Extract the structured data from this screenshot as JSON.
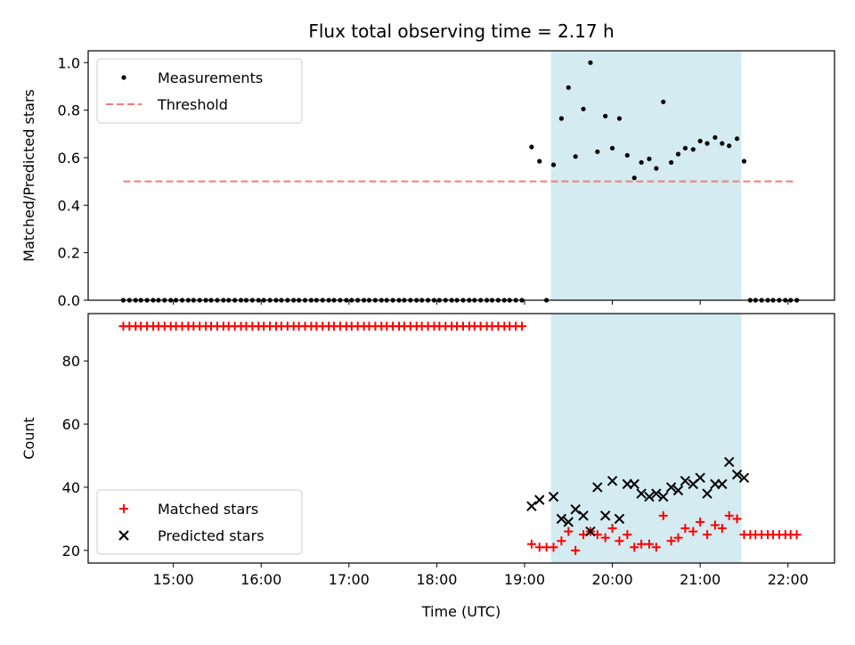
{
  "chart_data": {
    "title": "Flux total observing time = 2.17 h",
    "xlabel": "Time (UTC)",
    "x_unit": "hours UTC (decimal)",
    "x_ticks": [
      {
        "value": 15,
        "label": "15:00"
      },
      {
        "value": 16,
        "label": "16:00"
      },
      {
        "value": 17,
        "label": "17:00"
      },
      {
        "value": 18,
        "label": "18:00"
      },
      {
        "value": 19,
        "label": "19:00"
      },
      {
        "value": 20,
        "label": "20:00"
      },
      {
        "value": 21,
        "label": "21:00"
      },
      {
        "value": 22,
        "label": "22:00"
      }
    ],
    "xlim": [
      14.03,
      22.53
    ],
    "highlight_span": [
      19.3,
      21.47
    ],
    "highlight_color": "#d3ebf1",
    "panels": [
      {
        "type": "scatter",
        "ylabel": "Matched/Predicted stars",
        "ylim": [
          0,
          1.05
        ],
        "y_ticks": [
          {
            "value": 0.0,
            "label": "0.0"
          },
          {
            "value": 0.2,
            "label": "0.2"
          },
          {
            "value": 0.4,
            "label": "0.4"
          },
          {
            "value": 0.6,
            "label": "0.6"
          },
          {
            "value": 0.8,
            "label": "0.8"
          },
          {
            "value": 1.0,
            "label": "1.0"
          }
        ],
        "legend_position": "top-left",
        "threshold": {
          "name": "Threshold",
          "value": 0.5,
          "x_range": [
            14.43,
            22.1
          ],
          "color": "#f77a7a"
        },
        "series": [
          {
            "name": "Measurements",
            "marker": "dot",
            "color": "#000000",
            "x": [
              14.43,
              14.5,
              14.57,
              14.63,
              14.7,
              14.77,
              14.83,
              14.9,
              14.97,
              15.03,
              15.1,
              15.17,
              15.23,
              15.3,
              15.37,
              15.43,
              15.5,
              15.57,
              15.63,
              15.7,
              15.77,
              15.83,
              15.9,
              15.97,
              16.03,
              16.1,
              16.17,
              16.23,
              16.3,
              16.37,
              16.43,
              16.5,
              16.57,
              16.63,
              16.7,
              16.77,
              16.83,
              16.9,
              16.97,
              17.03,
              17.1,
              17.17,
              17.23,
              17.3,
              17.37,
              17.43,
              17.5,
              17.57,
              17.63,
              17.7,
              17.77,
              17.83,
              17.9,
              17.97,
              18.03,
              18.1,
              18.17,
              18.23,
              18.3,
              18.37,
              18.43,
              18.5,
              18.57,
              18.63,
              18.7,
              18.77,
              18.83,
              18.9,
              18.97,
              19.08,
              19.17,
              19.25,
              19.33,
              19.42,
              19.5,
              19.58,
              19.67,
              19.75,
              19.83,
              19.92,
              20.0,
              20.08,
              20.17,
              20.25,
              20.33,
              20.42,
              20.5,
              20.58,
              20.67,
              20.75,
              20.83,
              20.92,
              21.0,
              21.08,
              21.17,
              21.25,
              21.33,
              21.42,
              21.5,
              21.57,
              21.63,
              21.7,
              21.77,
              21.83,
              21.9,
              21.97,
              22.03,
              22.1
            ],
            "y": [
              0,
              0,
              0,
              0,
              0,
              0,
              0,
              0,
              0,
              0,
              0,
              0,
              0,
              0,
              0,
              0,
              0,
              0,
              0,
              0,
              0,
              0,
              0,
              0,
              0,
              0,
              0,
              0,
              0,
              0,
              0,
              0,
              0,
              0,
              0,
              0,
              0,
              0,
              0,
              0,
              0,
              0,
              0,
              0,
              0,
              0,
              0,
              0,
              0,
              0,
              0,
              0,
              0,
              0,
              0,
              0,
              0,
              0,
              0,
              0,
              0,
              0,
              0,
              0,
              0,
              0,
              0,
              0,
              0,
              0.645,
              0.585,
              0,
              0.57,
              0.765,
              0.895,
              0.605,
              0.805,
              1.0,
              0.625,
              0.775,
              0.64,
              0.765,
              0.61,
              0.515,
              0.58,
              0.595,
              0.555,
              0.835,
              0.58,
              0.615,
              0.64,
              0.635,
              0.67,
              0.66,
              0.685,
              0.66,
              0.65,
              0.68,
              0.585,
              0,
              0,
              0,
              0,
              0,
              0,
              0,
              0,
              0
            ]
          }
        ]
      },
      {
        "type": "scatter",
        "ylabel": "Count",
        "ylim": [
          16,
          95
        ],
        "y_ticks": [
          {
            "value": 20,
            "label": "20"
          },
          {
            "value": 40,
            "label": "40"
          },
          {
            "value": 60,
            "label": "60"
          },
          {
            "value": 80,
            "label": "80"
          }
        ],
        "legend_position": "bottom-left",
        "series": [
          {
            "name": "Matched stars",
            "marker": "plus",
            "color": "#ff0000",
            "x": [
              14.43,
              14.5,
              14.57,
              14.63,
              14.7,
              14.77,
              14.83,
              14.9,
              14.97,
              15.03,
              15.1,
              15.17,
              15.23,
              15.3,
              15.37,
              15.43,
              15.5,
              15.57,
              15.63,
              15.7,
              15.77,
              15.83,
              15.9,
              15.97,
              16.03,
              16.1,
              16.17,
              16.23,
              16.3,
              16.37,
              16.43,
              16.5,
              16.57,
              16.63,
              16.7,
              16.77,
              16.83,
              16.9,
              16.97,
              17.03,
              17.1,
              17.17,
              17.23,
              17.3,
              17.37,
              17.43,
              17.5,
              17.57,
              17.63,
              17.7,
              17.77,
              17.83,
              17.9,
              17.97,
              18.03,
              18.1,
              18.17,
              18.23,
              18.3,
              18.37,
              18.43,
              18.5,
              18.57,
              18.63,
              18.7,
              18.77,
              18.83,
              18.9,
              18.97,
              19.08,
              19.17,
              19.25,
              19.33,
              19.42,
              19.5,
              19.58,
              19.67,
              19.75,
              19.83,
              19.92,
              20.0,
              20.08,
              20.17,
              20.25,
              20.33,
              20.42,
              20.5,
              20.58,
              20.67,
              20.75,
              20.83,
              20.92,
              21.0,
              21.08,
              21.17,
              21.25,
              21.33,
              21.42,
              21.5,
              21.57,
              21.63,
              21.7,
              21.77,
              21.83,
              21.9,
              21.97,
              22.03,
              22.1
            ],
            "y": [
              91,
              91,
              91,
              91,
              91,
              91,
              91,
              91,
              91,
              91,
              91,
              91,
              91,
              91,
              91,
              91,
              91,
              91,
              91,
              91,
              91,
              91,
              91,
              91,
              91,
              91,
              91,
              91,
              91,
              91,
              91,
              91,
              91,
              91,
              91,
              91,
              91,
              91,
              91,
              91,
              91,
              91,
              91,
              91,
              91,
              91,
              91,
              91,
              91,
              91,
              91,
              91,
              91,
              91,
              91,
              91,
              91,
              91,
              91,
              91,
              91,
              91,
              91,
              91,
              91,
              91,
              91,
              91,
              91,
              22,
              21,
              21,
              21,
              23,
              26,
              20,
              25,
              26,
              25,
              24,
              27,
              23,
              25,
              21,
              22,
              22,
              21,
              31,
              23,
              24,
              27,
              26,
              29,
              25,
              28,
              27,
              31,
              30,
              25,
              25,
              25,
              25,
              25,
              25,
              25,
              25,
              25,
              25
            ]
          },
          {
            "name": "Predicted stars",
            "marker": "x",
            "color": "#000000",
            "x": [
              19.08,
              19.17,
              19.33,
              19.42,
              19.5,
              19.58,
              19.67,
              19.75,
              19.83,
              19.92,
              20.0,
              20.08,
              20.17,
              20.25,
              20.33,
              20.42,
              20.5,
              20.58,
              20.67,
              20.75,
              20.83,
              20.92,
              21.0,
              21.08,
              21.17,
              21.25,
              21.33,
              21.42,
              21.5
            ],
            "y": [
              34,
              36,
              37,
              30,
              29,
              33,
              31,
              26,
              40,
              31,
              42,
              30,
              41,
              41,
              38,
              37,
              38,
              37,
              40,
              39,
              42,
              41,
              43,
              38,
              41,
              41,
              48,
              44,
              43
            ]
          }
        ]
      }
    ]
  }
}
